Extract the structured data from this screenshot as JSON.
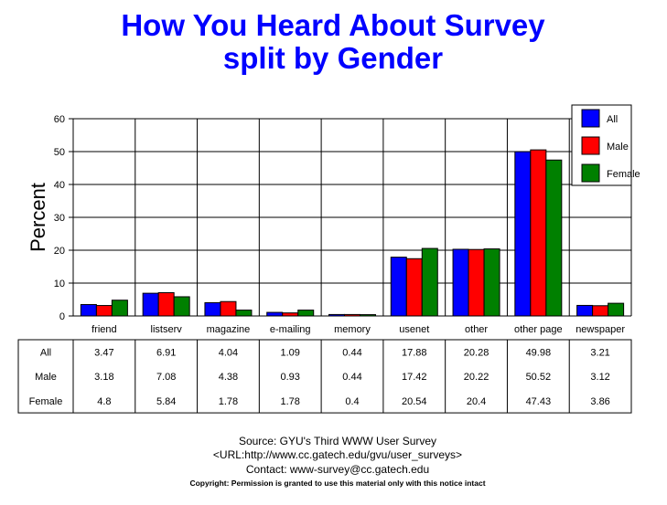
{
  "chart_data": {
    "type": "bar",
    "title": "How You Heard About Survey",
    "subtitle": "split by Gender",
    "ylabel": "Percent",
    "xlabel": "",
    "ylim": [
      0,
      60
    ],
    "yticks": [
      "0",
      "10",
      "20",
      "30",
      "40",
      "50",
      "60"
    ],
    "grid": true,
    "legend_position": "top-right",
    "categories": [
      "friend",
      "listserv",
      "magazine",
      "e-mailing",
      "memory",
      "usenet",
      "other",
      "other page",
      "newspaper"
    ],
    "series": [
      {
        "name": "All",
        "color": "#0000ff",
        "values": [
          3.47,
          6.91,
          4.04,
          1.09,
          0.44,
          17.88,
          20.28,
          49.98,
          3.21
        ],
        "labels": [
          "3.47",
          "6.91",
          "4.04",
          "1.09",
          "0.44",
          "17.88",
          "20.28",
          "49.98",
          "3.21"
        ]
      },
      {
        "name": "Male",
        "color": "#ff0000",
        "values": [
          3.18,
          7.08,
          4.38,
          0.93,
          0.44,
          17.42,
          20.22,
          50.52,
          3.12
        ],
        "labels": [
          "3.18",
          "7.08",
          "4.38",
          "0.93",
          "0.44",
          "17.42",
          "20.22",
          "50.52",
          "3.12"
        ]
      },
      {
        "name": "Female",
        "color": "#008000",
        "values": [
          4.8,
          5.84,
          1.78,
          1.78,
          0.4,
          20.54,
          20.4,
          47.43,
          3.86
        ],
        "labels": [
          "4.8",
          "5.84",
          "1.78",
          "1.78",
          "0.4",
          "20.54",
          "20.4",
          "47.43",
          "3.86"
        ]
      }
    ]
  },
  "footer": {
    "source": "Source: GYU's Third WWW User Survey",
    "url": "<URL:http://www.cc.gatech.edu/gvu/user_surveys>",
    "contact": "Contact: www-survey@cc.gatech.edu",
    "copyright": "Copyright: Permission is granted to use this material only with this notice intact"
  }
}
